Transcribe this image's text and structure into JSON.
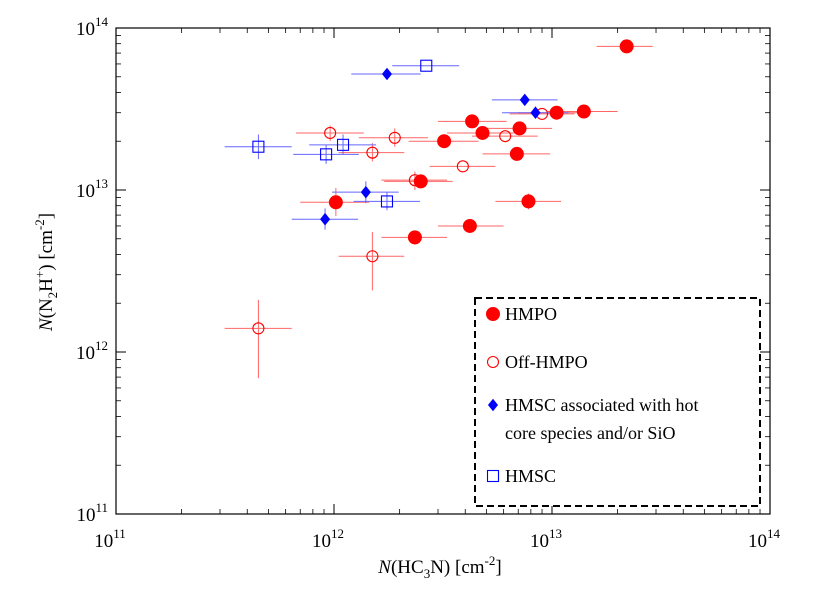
{
  "chart_data": {
    "type": "scatter",
    "xscale": "log",
    "yscale": "log",
    "xlim_exp": [
      11,
      14
    ],
    "ylim_exp": [
      11,
      14
    ],
    "x_tick_exponents": [
      "11",
      "12",
      "13",
      "14"
    ],
    "y_tick_exponents": [
      "11",
      "12",
      "13",
      "14"
    ],
    "tick_base": "10",
    "xlabel": {
      "italic": "N",
      "rest": "(HC",
      "sub": "3",
      "after": "N) [cm",
      "sup": "-2",
      "end": "]"
    },
    "ylabel": {
      "italic": "N",
      "rest": "(N",
      "sub": "2",
      "mid": "H",
      "sup": "+",
      "after": ")   [cm",
      "sup2": "-2",
      "end": "]"
    },
    "colors": {
      "red": "#ff0000",
      "blue": "#0000ff",
      "error_red": "#ff6666",
      "error_blue": "#6666ff"
    },
    "series": [
      {
        "name": "HMPO",
        "marker": "filled-circle",
        "color": "#ff0000",
        "points": [
          {
            "x": 22000000000000.0,
            "y": 77000000000000.0,
            "xerr": [
              16000000000000.0,
              29000000000000.0
            ],
            "yerr": null
          },
          {
            "x": 14000000000000.0,
            "y": 30500000000000.0,
            "xerr": [
              9500000000000.0,
              20000000000000.0
            ],
            "yerr": null
          },
          {
            "x": 10500000000000.0,
            "y": 30000000000000.0,
            "xerr": [
              7000000000000.0,
              15000000000000.0
            ],
            "yerr": null
          },
          {
            "x": 7100000000000.0,
            "y": 24000000000000.0,
            "xerr": [
              5000000000000.0,
              10000000000000.0
            ],
            "yerr": null
          },
          {
            "x": 4300000000000.0,
            "y": 26500000000000.0,
            "xerr": [
              3000000000000.0,
              6200000000000.0
            ],
            "yerr": null
          },
          {
            "x": 4800000000000.0,
            "y": 22500000000000.0,
            "xerr": [
              3300000000000.0,
              6900000000000.0
            ],
            "yerr": null
          },
          {
            "x": 3200000000000.0,
            "y": 20000000000000.0,
            "xerr": [
              2200000000000.0,
              4600000000000.0
            ],
            "yerr": null
          },
          {
            "x": 6900000000000.0,
            "y": 16700000000000.0,
            "xerr": [
              4800000000000.0,
              9800000000000.0
            ],
            "yerr": null
          },
          {
            "x": 2500000000000.0,
            "y": 11300000000000.0,
            "xerr": [
              1700000000000.0,
              3500000000000.0
            ],
            "yerr": null
          },
          {
            "x": 1020000000000.0,
            "y": 8400000000000.0,
            "xerr": [
              700000000000.0,
              1450000000000.0
            ],
            "yerr": [
              6900000000000.0,
              10300000000000.0
            ]
          },
          {
            "x": 7800000000000.0,
            "y": 8500000000000.0,
            "xerr": [
              5500000000000.0,
              11000000000000.0
            ],
            "yerr": [
              7600000000000.0,
              9500000000000.0
            ]
          },
          {
            "x": 4200000000000.0,
            "y": 6000000000000.0,
            "xerr": [
              3000000000000.0,
              6000000000000.0
            ],
            "yerr": null
          },
          {
            "x": 2350000000000.0,
            "y": 5100000000000.0,
            "xerr": [
              1650000000000.0,
              3300000000000.0
            ],
            "yerr": [
              4600000000000.0,
              5600000000000.0
            ]
          }
        ]
      },
      {
        "name": "Off-HMPO",
        "marker": "open-circle",
        "color": "#ff0000",
        "points": [
          {
            "x": 9000000000000.0,
            "y": 29500000000000.0,
            "xerr": [
              6400000000000.0,
              12700000000000.0
            ],
            "yerr": null
          },
          {
            "x": 6100000000000.0,
            "y": 21500000000000.0,
            "xerr": [
              4300000000000.0,
              8600000000000.0
            ],
            "yerr": null
          },
          {
            "x": 960000000000.0,
            "y": 22500000000000.0,
            "xerr": [
              670000000000.0,
              1370000000000.0
            ],
            "yerr": [
              20000000000000.0,
              25000000000000.0
            ]
          },
          {
            "x": 1900000000000.0,
            "y": 21000000000000.0,
            "xerr": [
              1300000000000.0,
              2700000000000.0
            ],
            "yerr": [
              18500000000000.0,
              24000000000000.0
            ]
          },
          {
            "x": 1500000000000.0,
            "y": 17000000000000.0,
            "xerr": [
              1050000000000.0,
              2100000000000.0
            ],
            "yerr": [
              15000000000000.0,
              19500000000000.0
            ]
          },
          {
            "x": 3900000000000.0,
            "y": 14000000000000.0,
            "xerr": [
              2750000000000.0,
              5500000000000.0
            ],
            "yerr": null
          },
          {
            "x": 2350000000000.0,
            "y": 11500000000000.0,
            "xerr": [
              1650000000000.0,
              3300000000000.0
            ],
            "yerr": [
              10000000000000.0,
              13000000000000.0
            ]
          },
          {
            "x": 1500000000000.0,
            "y": 3900000000000.0,
            "xerr": [
              1050000000000.0,
              2100000000000.0
            ],
            "yerr": [
              2400000000000.0,
              5500000000000.0
            ]
          },
          {
            "x": 450000000000.0,
            "y": 1400000000000.0,
            "xerr": [
              315000000000.0,
              640000000000.0
            ],
            "yerr": [
              690000000000.0,
              2100000000000.0
            ]
          }
        ]
      },
      {
        "name": "HMSC associated with hot core species and/or SiO",
        "marker": "filled-diamond",
        "color": "#0000ff",
        "points": [
          {
            "x": 1750000000000.0,
            "y": 52000000000000.0,
            "xerr": [
              1200000000000.0,
              2500000000000.0
            ],
            "yerr": null
          },
          {
            "x": 7500000000000.0,
            "y": 36000000000000.0,
            "xerr": [
              5300000000000.0,
              10600000000000.0
            ],
            "yerr": null
          },
          {
            "x": 8400000000000.0,
            "y": 30000000000000.0,
            "xerr": [
              5900000000000.0,
              11900000000000.0
            ],
            "yerr": null
          },
          {
            "x": 1400000000000.0,
            "y": 9700000000000.0,
            "xerr": [
              980000000000.0,
              1980000000000.0
            ],
            "yerr": [
              8300000000000.0,
              11300000000000.0
            ]
          },
          {
            "x": 910000000000.0,
            "y": 6600000000000.0,
            "xerr": [
              640000000000.0,
              1290000000000.0
            ],
            "yerr": [
              5700000000000.0,
              7700000000000.0
            ]
          }
        ]
      },
      {
        "name": "HMSC",
        "marker": "open-square",
        "color": "#0000ff",
        "points": [
          {
            "x": 2650000000000.0,
            "y": 58500000000000.0,
            "xerr": [
              1850000000000.0,
              3750000000000.0
            ],
            "yerr": null
          },
          {
            "x": 450000000000.0,
            "y": 18500000000000.0,
            "xerr": [
              315000000000.0,
              640000000000.0
            ],
            "yerr": [
              15500000000000.0,
              22000000000000.0
            ]
          },
          {
            "x": 1100000000000.0,
            "y": 19000000000000.0,
            "xerr": [
              770000000000.0,
              1560000000000.0
            ],
            "yerr": [
              16500000000000.0,
              22000000000000.0
            ]
          },
          {
            "x": 920000000000.0,
            "y": 16600000000000.0,
            "xerr": [
              650000000000.0,
              1300000000000.0
            ],
            "yerr": [
              14500000000000.0,
              19000000000000.0
            ]
          },
          {
            "x": 1750000000000.0,
            "y": 8500000000000.0,
            "xerr": [
              1230000000000.0,
              2480000000000.0
            ],
            "yerr": [
              7500000000000.0,
              9700000000000.0
            ]
          }
        ]
      }
    ],
    "legend": {
      "placement": "bottom-right",
      "border": "dashed",
      "entries": [
        {
          "marker": "filled-circle",
          "color": "#ff0000",
          "lines": [
            "HMPO"
          ]
        },
        {
          "marker": "open-circle",
          "color": "#ff0000",
          "lines": [
            "Off-HMPO"
          ]
        },
        {
          "marker": "filled-diamond",
          "color": "#0000ff",
          "lines": [
            "HMSC associated with hot",
            "core species and/or SiO"
          ]
        },
        {
          "marker": "open-square",
          "color": "#0000ff",
          "lines": [
            "HMSC"
          ]
        }
      ]
    }
  }
}
